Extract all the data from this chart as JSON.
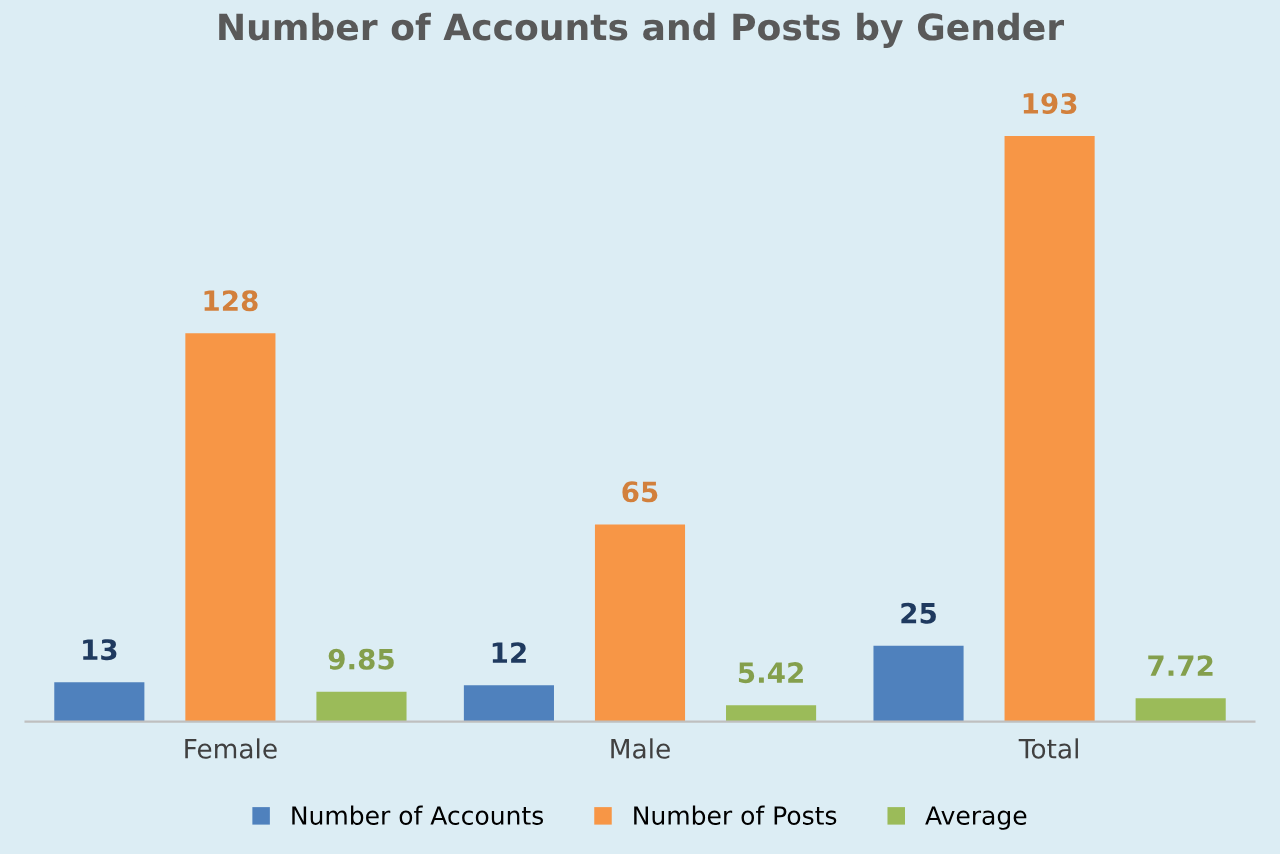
{
  "chart_data": {
    "type": "bar",
    "title": "Number of Accounts and Posts by Gender",
    "categories": [
      "Female",
      "Male",
      "Total"
    ],
    "series": [
      {
        "name": "Number of Accounts",
        "color": "#4f81bd",
        "values": [
          13,
          12,
          25
        ]
      },
      {
        "name": "Number of Posts",
        "color": "#f79646",
        "values": [
          128,
          65,
          193
        ]
      },
      {
        "name": "Average",
        "color": "#9bbb59",
        "values": [
          9.85,
          5.42,
          7.72
        ]
      }
    ],
    "data_labels": true,
    "legend": "bottom",
    "grid": false
  }
}
